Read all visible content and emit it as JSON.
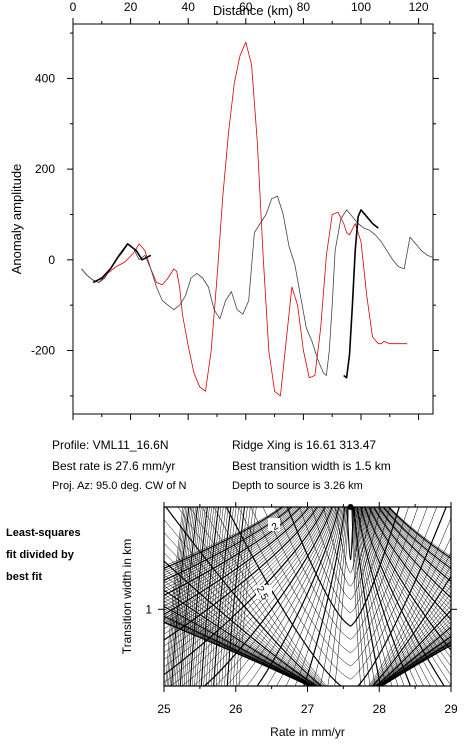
{
  "chart_data": [
    {
      "type": "line",
      "xlabel": "Distance (km)",
      "ylabel": "Anomaly amplitude",
      "xlim": [
        0,
        125
      ],
      "ylim": [
        -340,
        520
      ],
      "xticks": [
        "0",
        "20",
        "40",
        "60",
        "80",
        "100",
        "120"
      ],
      "yticks": [
        "-200",
        "0",
        "200",
        "400"
      ],
      "grid": false,
      "series": [
        {
          "color": "#e00000",
          "x": [
            3,
            5,
            7,
            9,
            12,
            15,
            18,
            21,
            23,
            25,
            27,
            29,
            31,
            33,
            35,
            36,
            37,
            38,
            40,
            42,
            44,
            46,
            48,
            50,
            52,
            54,
            56,
            58,
            60,
            62,
            64,
            66,
            68,
            70,
            72,
            74,
            76,
            78,
            80,
            82,
            84,
            86,
            88,
            90,
            92,
            94,
            95,
            96,
            98,
            100,
            102,
            104,
            106,
            107,
            108,
            110,
            112,
            114,
            116
          ],
          "y": [
            -20,
            -35,
            -45,
            -50,
            -30,
            -15,
            -5,
            15,
            35,
            20,
            -20,
            -50,
            -55,
            -40,
            -20,
            -25,
            -60,
            -120,
            -190,
            -250,
            -280,
            -290,
            -200,
            -40,
            140,
            280,
            390,
            450,
            480,
            430,
            260,
            10,
            -200,
            -290,
            -300,
            -180,
            -60,
            -100,
            -200,
            -260,
            -255,
            -150,
            10,
            100,
            105,
            80,
            60,
            55,
            80,
            40,
            -80,
            -170,
            -185,
            -185,
            -180,
            -185,
            -185,
            -185,
            -185
          ]
        },
        {
          "color": "#444444",
          "x": [
            3,
            5,
            7,
            9,
            11,
            13,
            15,
            17,
            19,
            21,
            23,
            25,
            27,
            29,
            31,
            33,
            35,
            37,
            39,
            41,
            43,
            45,
            47,
            49,
            51,
            53,
            55,
            57,
            59,
            61,
            63,
            65,
            67,
            69,
            71,
            73,
            75,
            77,
            79,
            81,
            83,
            85,
            87,
            88,
            89,
            90,
            91,
            93,
            95,
            97,
            99,
            101,
            103,
            105,
            107,
            109,
            111,
            113,
            115,
            117,
            119,
            121,
            123,
            125
          ],
          "y": [
            -20,
            -35,
            -45,
            -50,
            -40,
            -20,
            0,
            15,
            35,
            25,
            0,
            10,
            -20,
            -60,
            -90,
            -100,
            -110,
            -100,
            -80,
            -40,
            -30,
            -40,
            -60,
            -110,
            -130,
            -90,
            -70,
            -110,
            -120,
            -90,
            60,
            80,
            100,
            135,
            140,
            100,
            30,
            -10,
            -80,
            -150,
            -180,
            -220,
            -250,
            -255,
            -200,
            -100,
            20,
            90,
            110,
            95,
            80,
            70,
            65,
            55,
            40,
            20,
            0,
            -15,
            -20,
            50,
            35,
            20,
            10,
            5
          ]
        },
        {
          "color": "#000000",
          "x": [
            7,
            10,
            13,
            16,
            19,
            22,
            24,
            27
          ],
          "y": [
            -50,
            -40,
            -20,
            10,
            35,
            20,
            0,
            10
          ]
        },
        {
          "color": "#000000",
          "x": [
            94,
            95,
            96,
            97,
            98,
            99,
            100,
            102,
            104,
            106
          ],
          "y": [
            -255,
            -260,
            -210,
            -100,
            20,
            95,
            110,
            95,
            80,
            70
          ]
        }
      ]
    },
    {
      "type": "heatmap",
      "xlabel": "Rate in mm/yr",
      "ylabel": "Transition width in km",
      "xlim": [
        25,
        29
      ],
      "ylim": [
        0.4,
        1.8
      ],
      "xticks": [
        "25",
        "26",
        "27",
        "28",
        "29"
      ],
      "yticks": [
        "1"
      ],
      "contour_labels": [
        "2",
        "2.5"
      ],
      "best_fit": {
        "rate": 27.6,
        "width": 1.5
      }
    }
  ],
  "info": {
    "profile": "Profile: VML11_16.6N",
    "ridge_xing": "Ridge Xing is 16.61 313.47",
    "best_rate": "Best rate is 27.6 mm/yr",
    "best_width": "Best transition width is 1.5 km",
    "proj_az": "Proj. Az: 95.0 deg. CW of N",
    "depth": "Depth to source is   3.26 km"
  },
  "side_label": [
    "Least-squares",
    "fit divided by",
    "best fit"
  ]
}
